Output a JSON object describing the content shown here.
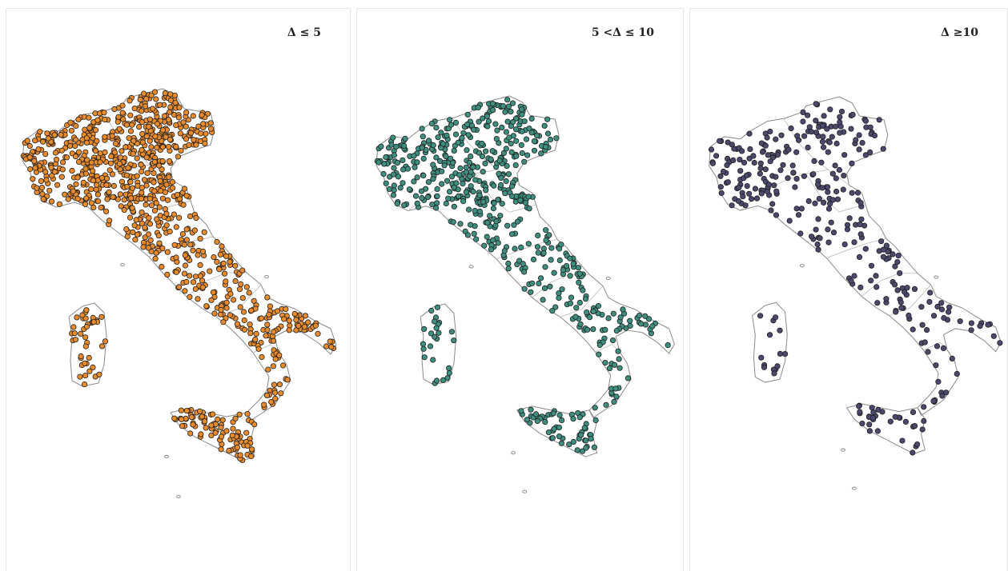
{
  "panels": [
    {
      "title": "Δ ≤ 5",
      "color": "#E98A2B",
      "density": 1.0
    },
    {
      "title": "5 <Δ ≤ 10",
      "color": "#3E8F80",
      "density": 0.62
    },
    {
      "title": "Δ ≥10",
      "color": "#4B4A6E",
      "density": 0.34
    }
  ]
}
